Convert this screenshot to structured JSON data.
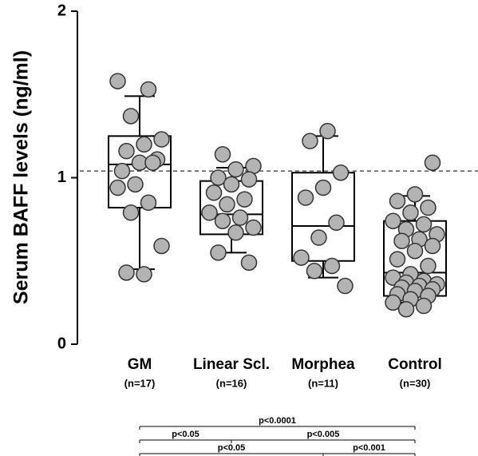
{
  "chart_data": {
    "type": "box-scatter",
    "y_label": "Serum BAFF levels (ng/ml)",
    "categories": [
      "GM",
      "Linear Scl.",
      "Morphea",
      "Control"
    ],
    "n_labels": [
      "(n=17)",
      "(n=16)",
      "(n=11)",
      "(n=30)"
    ],
    "ylim": [
      0,
      2
    ],
    "yticks": [
      0,
      1,
      2
    ],
    "reference_line": 1.04,
    "point_color": "#b3b3b3",
    "boxes": [
      {
        "whislo": 0.45,
        "q1": 0.82,
        "med": 1.08,
        "q3": 1.25,
        "whishi": 1.49
      },
      {
        "whislo": 0.55,
        "q1": 0.66,
        "med": 0.78,
        "q3": 0.98,
        "whishi": 1.06
      },
      {
        "whislo": 0.4,
        "q1": 0.5,
        "med": 0.71,
        "q3": 1.03,
        "whishi": 1.25
      },
      {
        "whislo": 0.25,
        "q1": 0.29,
        "med": 0.43,
        "q3": 0.74,
        "whishi": 0.89
      }
    ],
    "points": [
      [
        1.58,
        1.53,
        1.37,
        1.23,
        1.2,
        1.16,
        1.11,
        1.09,
        1.04,
        1.09,
        0.96,
        0.94,
        0.85,
        0.79,
        0.59,
        0.42,
        0.43
      ],
      [
        1.14,
        1.07,
        1.05,
        1.0,
        0.99,
        0.96,
        0.91,
        0.87,
        0.84,
        0.79,
        0.76,
        0.74,
        0.7,
        0.67,
        0.55,
        0.49
      ],
      [
        1.28,
        1.22,
        1.03,
        0.94,
        0.88,
        0.73,
        0.64,
        0.52,
        0.47,
        0.44,
        0.35
      ],
      [
        1.09,
        0.9,
        0.86,
        0.82,
        0.79,
        0.74,
        0.72,
        0.69,
        0.66,
        0.63,
        0.62,
        0.59,
        0.56,
        0.51,
        0.47,
        0.42,
        0.4,
        0.38,
        0.37,
        0.36,
        0.35,
        0.34,
        0.33,
        0.32,
        0.3,
        0.29,
        0.27,
        0.25,
        0.23,
        0.21
      ]
    ],
    "comparisons": [
      {
        "from": "GM",
        "to": "Control",
        "label": "p<0.0001"
      },
      {
        "from": "GM",
        "to": "Linear Scl.",
        "label": "p<0.05"
      },
      {
        "from": "Linear Scl.",
        "to": "Control",
        "label": "p<0.005"
      },
      {
        "from": "GM",
        "to": "Morphea",
        "label": "p<0.05"
      },
      {
        "from": "Morphea",
        "to": "Control",
        "label": "p<0.001"
      }
    ]
  }
}
